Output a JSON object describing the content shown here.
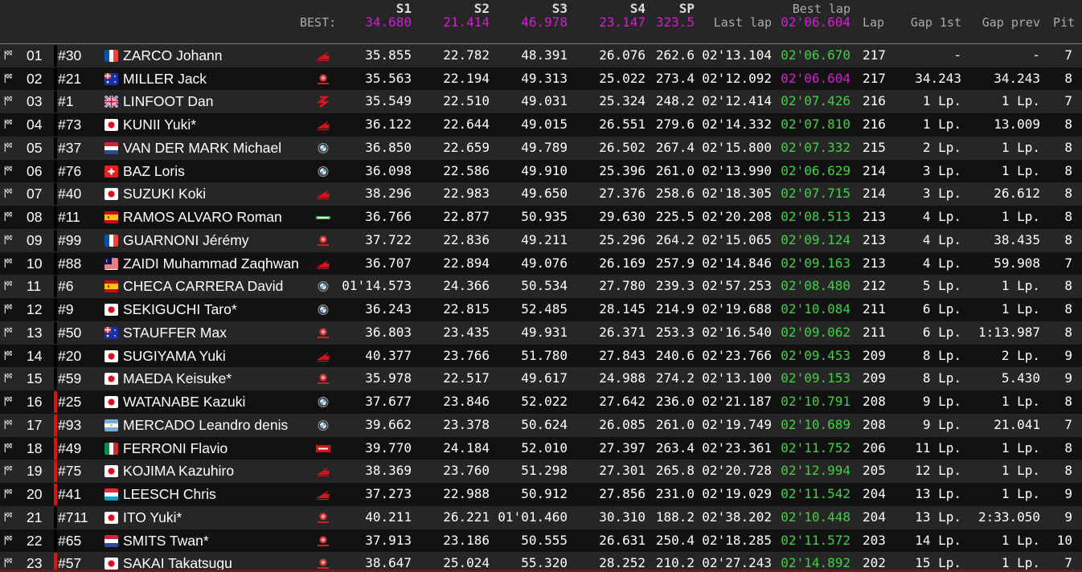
{
  "header": {
    "best_label": "BEST:",
    "s1": "S1",
    "s2": "S2",
    "s3": "S3",
    "s4": "S4",
    "sp": "SP",
    "last_lap": "Last lap",
    "best_lap": "Best lap",
    "lap": "Lap",
    "gap_1st": "Gap 1st",
    "gap_prev": "Gap prev",
    "pit": "Pit",
    "best_s1": "34.680",
    "best_s2": "21.414",
    "best_s3": "46.978",
    "best_s4": "23.147",
    "best_sp": "323.5",
    "best_lap_value": "02'06.604"
  },
  "colors": {
    "best": "#d21ed2",
    "personal_best": "#3fd23f",
    "bar_red": "#e01010",
    "bar_black": "#000000"
  },
  "rows": [
    {
      "pos": "01",
      "num": "#30",
      "flag": "FR",
      "name": "ZARCO Johann",
      "mfr": "honda",
      "s1": "35.855",
      "s2": "22.782",
      "s3": "48.391",
      "s4": "26.076",
      "sp": "262.6",
      "last": "02'13.104",
      "best": "02'06.670",
      "lap": "217",
      "gap1": "-",
      "gapp": "-",
      "pit": "7",
      "bar": "black"
    },
    {
      "pos": "02",
      "num": "#21",
      "flag": "AU",
      "name": "MILLER Jack",
      "mfr": "yamaha",
      "s1": "35.563",
      "s2": "22.194",
      "s3": "49.313",
      "s4": "25.022",
      "sp": "273.4",
      "last": "02'12.092",
      "best": "02'06.604",
      "best_overall": true,
      "lap": "217",
      "gap1": "34.243",
      "gapp": "34.243",
      "pit": "8",
      "bar": "black"
    },
    {
      "pos": "03",
      "num": "#1",
      "flag": "GB",
      "name": "LINFOOT Dan",
      "mfr": "suzuki",
      "s1": "35.549",
      "s2": "22.510",
      "s3": "49.031",
      "s4": "25.324",
      "sp": "248.2",
      "last": "02'12.414",
      "best": "02'07.426",
      "lap": "216",
      "gap1": "1 Lp.",
      "gapp": "1 Lp.",
      "pit": "7",
      "bar": "black"
    },
    {
      "pos": "04",
      "num": "#73",
      "flag": "JP",
      "name": "KUNII Yuki*",
      "mfr": "honda",
      "s1": "36.122",
      "s2": "22.644",
      "s3": "49.015",
      "s4": "26.551",
      "sp": "279.6",
      "last": "02'14.332",
      "best": "02'07.810",
      "lap": "216",
      "gap1": "1 Lp.",
      "gapp": "13.009",
      "pit": "8",
      "bar": "black"
    },
    {
      "pos": "05",
      "num": "#37",
      "flag": "NL",
      "name": "VAN DER MARK Michael",
      "mfr": "bmw",
      "s1": "36.850",
      "s2": "22.659",
      "s3": "49.789",
      "s4": "26.502",
      "sp": "267.4",
      "last": "02'15.800",
      "best": "02'07.332",
      "lap": "215",
      "gap1": "2 Lp.",
      "gapp": "1 Lp.",
      "pit": "8",
      "bar": "black"
    },
    {
      "pos": "06",
      "num": "#76",
      "flag": "CH",
      "name": "BAZ Loris",
      "mfr": "bmw",
      "s1": "36.098",
      "s2": "22.586",
      "s3": "49.910",
      "s4": "25.396",
      "sp": "261.0",
      "last": "02'13.990",
      "best": "02'06.629",
      "lap": "214",
      "gap1": "3 Lp.",
      "gapp": "1 Lp.",
      "pit": "8",
      "bar": "black"
    },
    {
      "pos": "07",
      "num": "#40",
      "flag": "JP",
      "name": "SUZUKI Koki",
      "mfr": "honda",
      "s1": "38.296",
      "s2": "22.983",
      "s3": "49.650",
      "s4": "27.376",
      "sp": "258.6",
      "last": "02'18.305",
      "best": "02'07.715",
      "lap": "214",
      "gap1": "3 Lp.",
      "gapp": "26.612",
      "pit": "8",
      "bar": "black"
    },
    {
      "pos": "08",
      "num": "#11",
      "flag": "ES",
      "name": "RAMOS ALVARO Roman",
      "mfr": "kawasaki",
      "s1": "36.766",
      "s2": "22.877",
      "s3": "50.935",
      "s4": "29.630",
      "sp": "225.5",
      "last": "02'20.208",
      "best": "02'08.513",
      "lap": "213",
      "gap1": "4 Lp.",
      "gapp": "1 Lp.",
      "pit": "8",
      "bar": "black"
    },
    {
      "pos": "09",
      "num": "#99",
      "flag": "FR",
      "name": "GUARNONI Jérémy",
      "mfr": "yamaha",
      "s1": "37.722",
      "s2": "22.836",
      "s3": "49.211",
      "s4": "25.296",
      "sp": "264.2",
      "last": "02'15.065",
      "best": "02'09.124",
      "lap": "213",
      "gap1": "4 Lp.",
      "gapp": "38.435",
      "pit": "8",
      "bar": "black"
    },
    {
      "pos": "10",
      "num": "#88",
      "flag": "MY",
      "name": "ZAIDI Muhammad Zaqhwan",
      "mfr": "honda",
      "s1": "36.707",
      "s2": "22.894",
      "s3": "49.076",
      "s4": "26.169",
      "sp": "257.9",
      "last": "02'14.846",
      "best": "02'09.163",
      "lap": "213",
      "gap1": "4 Lp.",
      "gapp": "59.908",
      "pit": "7",
      "bar": "black"
    },
    {
      "pos": "11",
      "num": "#6",
      "flag": "ES",
      "name": "CHECA CARRERA David",
      "mfr": "bmw",
      "s1": "01'14.573",
      "s2": "24.366",
      "s3": "50.534",
      "s4": "27.780",
      "sp": "239.3",
      "last": "02'57.253",
      "best": "02'08.480",
      "lap": "212",
      "gap1": "5 Lp.",
      "gapp": "1 Lp.",
      "pit": "8",
      "bar": "black"
    },
    {
      "pos": "12",
      "num": "#9",
      "flag": "JP",
      "name": "SEKIGUCHI Taro*",
      "mfr": "bmw",
      "s1": "36.243",
      "s2": "22.815",
      "s3": "52.485",
      "s4": "28.145",
      "sp": "214.9",
      "last": "02'19.688",
      "best": "02'10.084",
      "lap": "211",
      "gap1": "6 Lp.",
      "gapp": "1 Lp.",
      "pit": "8",
      "bar": "black"
    },
    {
      "pos": "13",
      "num": "#50",
      "flag": "AU",
      "name": "STAUFFER Max",
      "mfr": "yamaha",
      "s1": "36.803",
      "s2": "23.435",
      "s3": "49.931",
      "s4": "26.371",
      "sp": "253.3",
      "last": "02'16.540",
      "best": "02'09.062",
      "lap": "211",
      "gap1": "6 Lp.",
      "gapp": "1:13.987",
      "pit": "8",
      "bar": "black"
    },
    {
      "pos": "14",
      "num": "#20",
      "flag": "JP",
      "name": "SUGIYAMA Yuki",
      "mfr": "honda",
      "s1": "40.377",
      "s2": "23.766",
      "s3": "51.780",
      "s4": "27.843",
      "sp": "240.6",
      "last": "02'23.766",
      "best": "02'09.453",
      "lap": "209",
      "gap1": "8 Lp.",
      "gapp": "2 Lp.",
      "pit": "9",
      "bar": "black"
    },
    {
      "pos": "15",
      "num": "#59",
      "flag": "JP",
      "name": "MAEDA Keisuke*",
      "mfr": "yamaha",
      "s1": "35.978",
      "s2": "22.517",
      "s3": "49.617",
      "s4": "24.988",
      "sp": "274.2",
      "last": "02'13.100",
      "best": "02'09.153",
      "lap": "209",
      "gap1": "8 Lp.",
      "gapp": "5.430",
      "pit": "9",
      "bar": "black"
    },
    {
      "pos": "16",
      "num": "#25",
      "flag": "JP",
      "name": "WATANABE Kazuki",
      "mfr": "bmw",
      "s1": "37.677",
      "s2": "23.846",
      "s3": "52.022",
      "s4": "27.642",
      "sp": "236.0",
      "last": "02'21.187",
      "best": "02'10.791",
      "lap": "208",
      "gap1": "9 Lp.",
      "gapp": "1 Lp.",
      "pit": "8",
      "bar": "red"
    },
    {
      "pos": "17",
      "num": "#93",
      "flag": "AR",
      "name": "MERCADO Leandro denis",
      "mfr": "bmw",
      "s1": "39.662",
      "s2": "23.378",
      "s3": "50.624",
      "s4": "26.085",
      "sp": "261.0",
      "last": "02'19.749",
      "best": "02'10.689",
      "lap": "208",
      "gap1": "9 Lp.",
      "gapp": "21.041",
      "pit": "7",
      "bar": "red"
    },
    {
      "pos": "18",
      "num": "#49",
      "flag": "IT",
      "name": "FERRONI Flavio",
      "mfr": "aprilia",
      "s1": "39.770",
      "s2": "24.184",
      "s3": "52.010",
      "s4": "27.397",
      "sp": "263.4",
      "last": "02'23.361",
      "best": "02'11.752",
      "lap": "206",
      "gap1": "11 Lp.",
      "gapp": "1 Lp.",
      "pit": "8",
      "bar": "red"
    },
    {
      "pos": "19",
      "num": "#75",
      "flag": "JP",
      "name": "KOJIMA Kazuhiro",
      "mfr": "honda",
      "s1": "38.369",
      "s2": "23.760",
      "s3": "51.298",
      "s4": "27.301",
      "sp": "265.8",
      "last": "02'20.728",
      "best": "02'12.994",
      "lap": "205",
      "gap1": "12 Lp.",
      "gapp": "1 Lp.",
      "pit": "8",
      "bar": "red"
    },
    {
      "pos": "20",
      "num": "#41",
      "flag": "LU",
      "name": "LEESCH Chris",
      "mfr": "honda",
      "s1": "37.273",
      "s2": "22.988",
      "s3": "50.912",
      "s4": "27.856",
      "sp": "231.0",
      "last": "02'19.029",
      "best": "02'11.542",
      "lap": "204",
      "gap1": "13 Lp.",
      "gapp": "1 Lp.",
      "pit": "9",
      "bar": "red"
    },
    {
      "pos": "21",
      "num": "#711",
      "flag": "JP",
      "name": "ITO Yuki*",
      "mfr": "yamaha",
      "s1": "40.211",
      "s2": "26.221",
      "s3": "01'01.460",
      "s4": "30.310",
      "sp": "188.2",
      "last": "02'38.202",
      "best": "02'10.448",
      "lap": "204",
      "gap1": "13 Lp.",
      "gapp": "2:33.050",
      "pit": "9",
      "bar": "black"
    },
    {
      "pos": "22",
      "num": "#65",
      "flag": "NL",
      "name": "SMITS Twan*",
      "mfr": "yamaha",
      "s1": "37.913",
      "s2": "23.186",
      "s3": "50.555",
      "s4": "26.631",
      "sp": "250.4",
      "last": "02'18.285",
      "best": "02'11.572",
      "lap": "203",
      "gap1": "14 Lp.",
      "gapp": "1 Lp.",
      "pit": "10",
      "bar": "black"
    },
    {
      "pos": "23",
      "num": "#57",
      "flag": "JP",
      "name": "SAKAI Takatsugu",
      "mfr": "yamaha",
      "s1": "38.647",
      "s2": "25.024",
      "s3": "55.320",
      "s4": "28.252",
      "sp": "210.2",
      "last": "02'27.243",
      "best": "02'14.892",
      "lap": "202",
      "gap1": "15 Lp.",
      "gapp": "1 Lp.",
      "pit": "7",
      "bar": "red"
    }
  ]
}
